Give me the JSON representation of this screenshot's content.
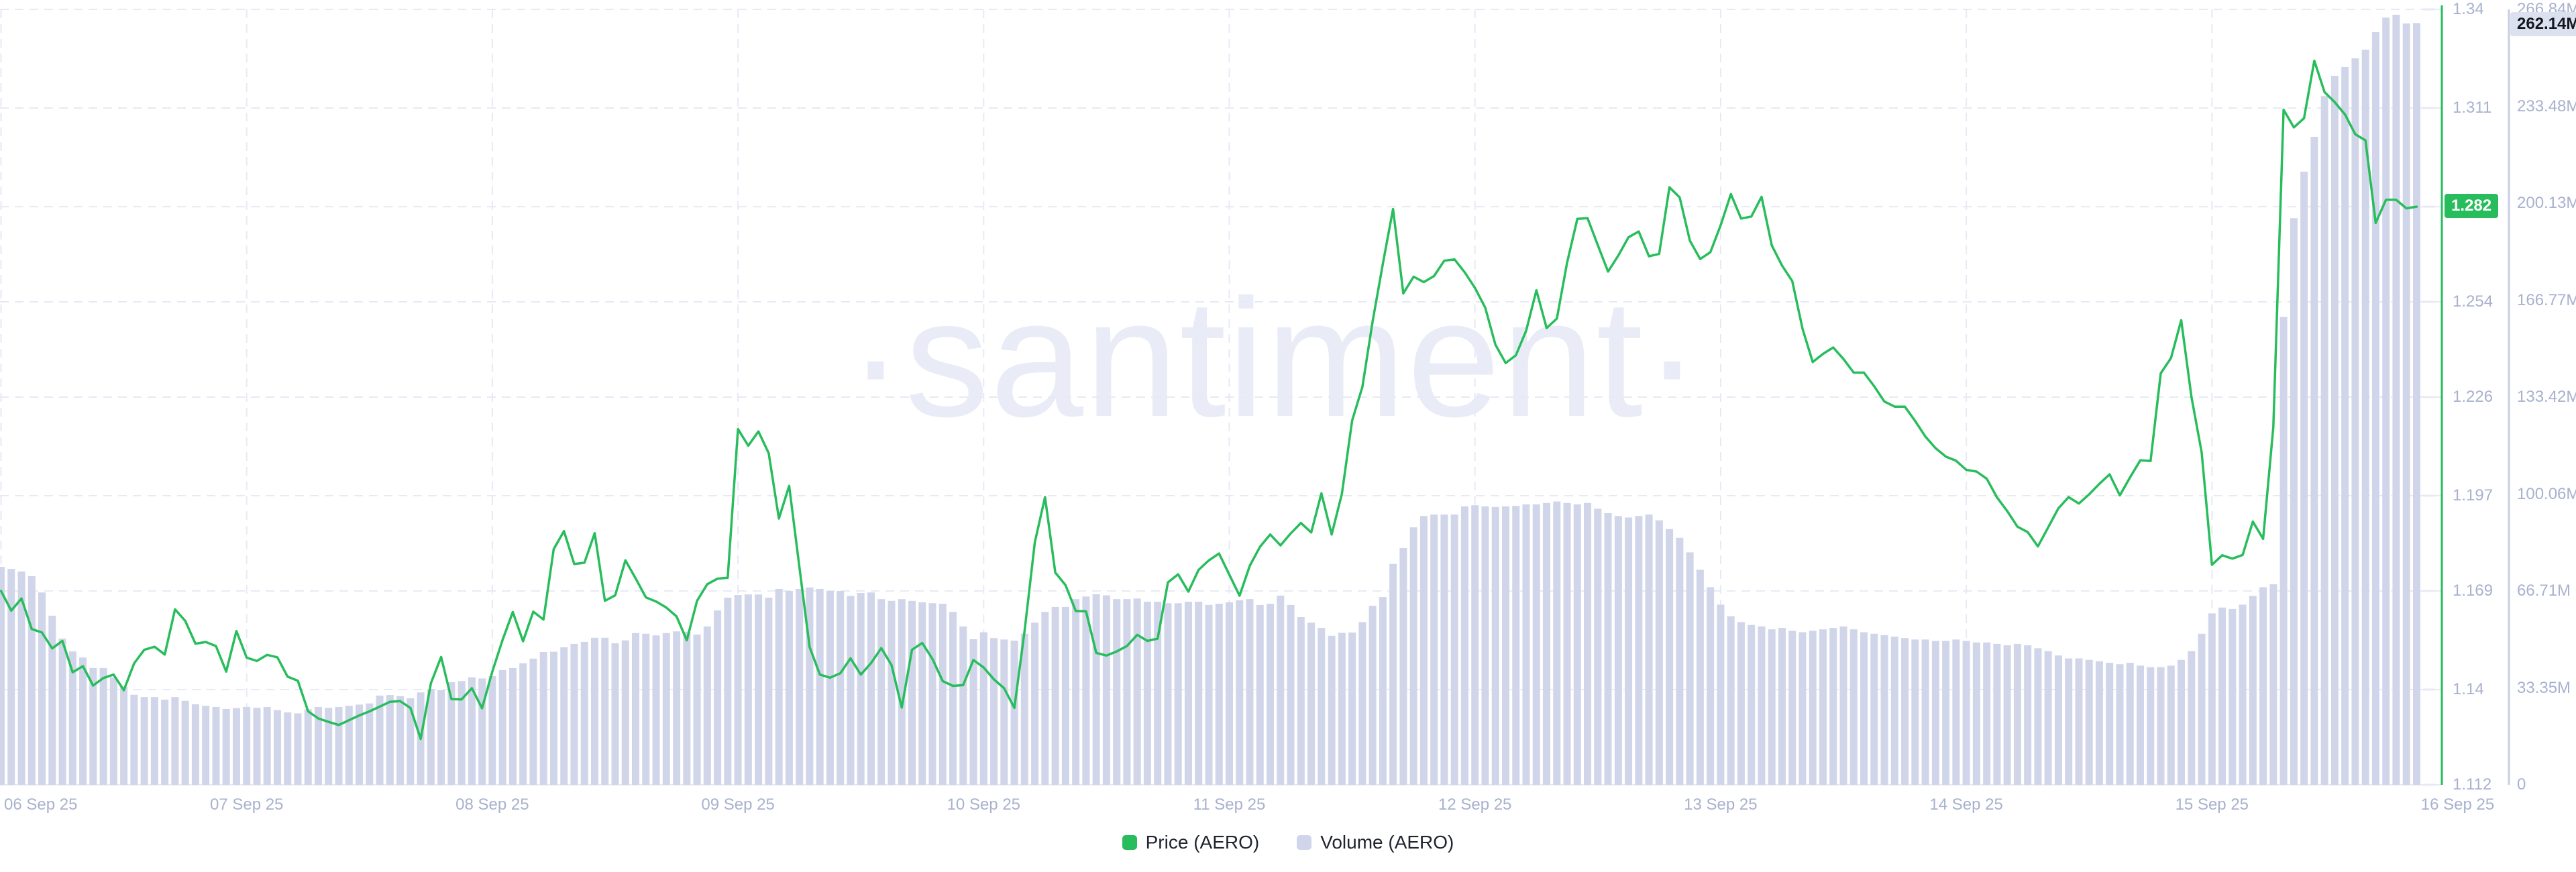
{
  "watermark": "·santiment·",
  "colors": {
    "price": "#28bd5c",
    "volume_bar": "#d0d5e9",
    "volume_axis_line": "#c9cee2",
    "grid": "#e7eaf4",
    "axis_text": "#a8b1ce",
    "badge_volume_bg": "#dce1f0",
    "badge_volume_text": "#14171f",
    "legend_text": "#20242f"
  },
  "legend": {
    "price": {
      "label": "Price (AERO)"
    },
    "volume": {
      "label": "Volume (AERO)"
    }
  },
  "price_axis": {
    "badge": "1.282",
    "ticks": [
      "1.34",
      "1.311",
      "1.282",
      "1.254",
      "1.226",
      "1.197",
      "1.169",
      "1.14",
      "1.112"
    ],
    "tick_values": [
      1.34,
      1.311,
      1.282,
      1.254,
      1.226,
      1.197,
      1.169,
      1.14,
      1.112
    ]
  },
  "volume_axis": {
    "badge": "262.14M",
    "ticks": [
      "266.84M",
      "233.48M",
      "200.13M",
      "166.77M",
      "133.42M",
      "100.06M",
      "66.71M",
      "33.35M",
      "0"
    ],
    "tick_values": [
      266.84,
      233.48,
      200.13,
      166.77,
      133.42,
      100.06,
      66.71,
      33.35,
      0
    ]
  },
  "x_axis": {
    "labels": [
      "06 Sep 25",
      "07 Sep 25",
      "08 Sep 25",
      "09 Sep 25",
      "10 Sep 25",
      "11 Sep 25",
      "12 Sep 25",
      "13 Sep 25",
      "14 Sep 25",
      "15 Sep 25",
      "16 Sep 25"
    ]
  },
  "chart_data": [
    {
      "type": "line",
      "name": "Price (AERO)",
      "color": "#28bd5c",
      "ylim": [
        1.112,
        1.34
      ],
      "x_start_label": "06 Sep 25",
      "interval": "1h",
      "current_value": 1.282,
      "values": [
        1.169,
        1.1632,
        1.1668,
        1.1578,
        1.1568,
        1.1521,
        1.1543,
        1.1451,
        1.1469,
        1.1412,
        1.1434,
        1.1444,
        1.1398,
        1.1477,
        1.1517,
        1.1526,
        1.1503,
        1.1636,
        1.1602,
        1.1535,
        1.154,
        1.1528,
        1.1453,
        1.1572,
        1.1494,
        1.1484,
        1.1502,
        1.1495,
        1.1438,
        1.1426,
        1.1336,
        1.1315,
        1.1305,
        1.1296,
        1.131,
        1.1324,
        1.1336,
        1.135,
        1.1364,
        1.1366,
        1.1346,
        1.1255,
        1.1419,
        1.1496,
        1.1372,
        1.1371,
        1.1404,
        1.1345,
        1.1453,
        1.1546,
        1.1628,
        1.1542,
        1.1629,
        1.1606,
        1.1813,
        1.1866,
        1.1769,
        1.1773,
        1.186,
        1.1661,
        1.1677,
        1.178,
        1.1727,
        1.1671,
        1.1659,
        1.1641,
        1.1615,
        1.1545,
        1.1661,
        1.171,
        1.1726,
        1.1729,
        1.2166,
        1.2117,
        1.2159,
        1.2095,
        1.1903,
        1.1999,
        1.1761,
        1.1525,
        1.1444,
        1.1435,
        1.1448,
        1.1492,
        1.1444,
        1.1478,
        1.1522,
        1.1472,
        1.1347,
        1.1517,
        1.1537,
        1.149,
        1.1425,
        1.1411,
        1.1413,
        1.1487,
        1.1465,
        1.143,
        1.1404,
        1.1346,
        1.1572,
        1.1833,
        1.1966,
        1.1744,
        1.1707,
        1.1631,
        1.163,
        1.1508,
        1.15,
        1.1512,
        1.1528,
        1.1561,
        1.1543,
        1.155,
        1.1715,
        1.1739,
        1.1688,
        1.1752,
        1.178,
        1.18,
        1.1738,
        1.1676,
        1.1764,
        1.182,
        1.1856,
        1.1824,
        1.1859,
        1.189,
        1.1862,
        1.1977,
        1.1856,
        1.1975,
        1.2191,
        1.229,
        1.2482,
        1.2652,
        1.2813,
        1.2565,
        1.2614,
        1.2598,
        1.2616,
        1.2661,
        1.2665,
        1.2627,
        1.2581,
        1.2523,
        1.2414,
        1.236,
        1.2383,
        1.2455,
        1.2574,
        1.2463,
        1.2491,
        1.2655,
        1.2784,
        1.2786,
        1.2707,
        1.2629,
        1.2676,
        1.273,
        1.2747,
        1.2674,
        1.2681,
        1.2877,
        1.2847,
        1.272,
        1.2666,
        1.2686,
        1.2765,
        1.2857,
        1.2785,
        1.2791,
        1.2849,
        1.2706,
        1.2647,
        1.2601,
        1.2461,
        1.2363,
        1.2387,
        1.2406,
        1.2372,
        1.2332,
        1.2332,
        1.2292,
        1.2247,
        1.2232,
        1.2232,
        1.219,
        1.2144,
        1.211,
        1.2085,
        1.2073,
        1.2046,
        1.2041,
        1.202,
        1.1965,
        1.1925,
        1.1879,
        1.1863,
        1.1821,
        1.1877,
        1.1933,
        1.1966,
        1.1947,
        1.1974,
        1.2005,
        1.2033,
        1.1971,
        1.2024,
        1.2074,
        1.2072,
        1.233,
        1.2375,
        1.2486,
        1.226,
        1.2097,
        1.1767,
        1.1795,
        1.1785,
        1.1796,
        1.1894,
        1.1843,
        1.2172,
        1.3105,
        1.3053,
        1.308,
        1.3249,
        1.3157,
        1.3127,
        1.3091,
        1.3033,
        1.3015,
        1.2772,
        1.284,
        1.284,
        1.2815,
        1.282
      ]
    },
    {
      "type": "bar",
      "name": "Volume (AERO)",
      "color": "#d0d5e9",
      "unit": "M",
      "ylim": [
        0,
        266.84
      ],
      "x_start_label": "06 Sep 25",
      "interval": "1h",
      "current_value": 262.14,
      "values": [
        75.0,
        74.3,
        73.4,
        71.8,
        66.2,
        58.2,
        50.3,
        45.9,
        43.8,
        40.2,
        40.2,
        37.0,
        33.7,
        31.0,
        30.2,
        30.2,
        29.3,
        30.2,
        28.9,
        27.7,
        27.2,
        26.8,
        26.1,
        26.4,
        26.8,
        26.5,
        26.8,
        25.7,
        24.9,
        24.6,
        26.0,
        26.8,
        26.5,
        26.8,
        27.2,
        27.6,
        28.0,
        30.7,
        30.9,
        30.5,
        29.8,
        31.8,
        33.0,
        32.6,
        35.3,
        35.7,
        37.0,
        36.6,
        37.4,
        39.5,
        40.2,
        41.8,
        43.4,
        45.7,
        45.8,
        47.3,
        48.5,
        49.2,
        50.6,
        50.6,
        48.7,
        49.7,
        52.2,
        52.0,
        51.4,
        52.2,
        52.8,
        52.7,
        51.7,
        54.5,
        60.0,
        64.4,
        65.3,
        65.5,
        65.5,
        64.4,
        67.4,
        66.7,
        67.4,
        67.9,
        67.4,
        66.7,
        66.7,
        65.0,
        66.0,
        66.2,
        63.9,
        63.3,
        63.9,
        63.3,
        62.8,
        62.5,
        62.3,
        59.5,
        54.5,
        50.1,
        52.5,
        50.5,
        50.0,
        49.6,
        52.0,
        55.8,
        59.5,
        61.2,
        61.2,
        63.9,
        64.8,
        65.6,
        65.2,
        63.9,
        63.9,
        64.1,
        63.0,
        63.0,
        62.5,
        62.5,
        63.0,
        63.0,
        61.9,
        62.3,
        62.8,
        63.5,
        63.9,
        61.9,
        62.3,
        65.1,
        61.9,
        57.7,
        55.8,
        54.0,
        51.3,
        52.3,
        52.4,
        56.0,
        61.6,
        64.6,
        76.0,
        81.5,
        88.6,
        92.5,
        93.0,
        93.0,
        93.0,
        95.8,
        96.2,
        95.8,
        95.6,
        95.8,
        96.0,
        96.5,
        96.5,
        97.0,
        97.5,
        97.0,
        96.5,
        97.0,
        95.0,
        93.5,
        92.5,
        92.0,
        92.5,
        93.0,
        91.0,
        88.0,
        85.0,
        80.0,
        74.0,
        68.0,
        62.0,
        58.0,
        56.0,
        55.0,
        54.5,
        53.5,
        54.0,
        53.0,
        52.5,
        53.0,
        53.5,
        54.0,
        54.5,
        53.5,
        52.5,
        52.0,
        51.5,
        51.0,
        50.5,
        50.0,
        50.0,
        49.5,
        49.5,
        50.0,
        49.5,
        49.0,
        49.0,
        48.5,
        48.0,
        48.5,
        48.0,
        47.0,
        46.0,
        44.5,
        43.5,
        43.5,
        43.0,
        42.5,
        42.0,
        41.5,
        42.0,
        41.0,
        40.5,
        40.5,
        41.0,
        43.0,
        46.0,
        52.0,
        59.0,
        61.0,
        60.5,
        62.0,
        65.0,
        68.0,
        69.0,
        161.0,
        195.0,
        211.0,
        223.0,
        237.0,
        244.0,
        247.0,
        250.0,
        253.0,
        259.0,
        264.0,
        265.0,
        262.0,
        262.14
      ]
    }
  ]
}
